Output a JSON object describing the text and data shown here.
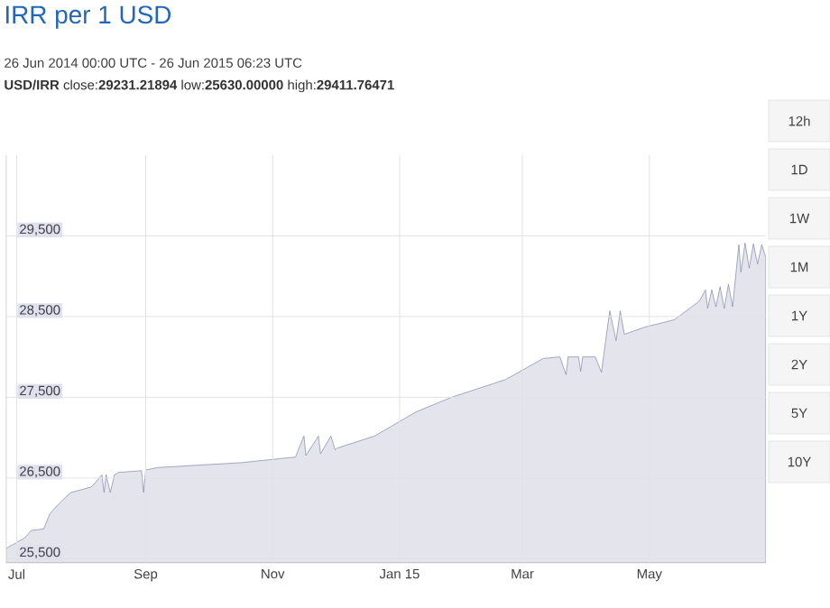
{
  "chart_data": {
    "type": "area",
    "title": "IRR per 1 USD",
    "subtitle": "26 Jun 2014 00:00 UTC - 26 Jun 2015 06:23 UTC",
    "annotations": [
      "**USD/IRR** close:**29231.21894** low:**25630.00000** high:**29411.76471**",
      "12h",
      "1D",
      "1W",
      "1M",
      "1Y",
      "2Y",
      "5Y",
      "10Y"
    ],
    "x": [
      "2014-06-26",
      "2014-07-05",
      "2014-07-08",
      "2014-07-14",
      "2014-07-17",
      "2014-07-22",
      "2014-07-27",
      "2014-08-06",
      "2014-08-11",
      "2014-08-12",
      "2014-08-13",
      "2014-08-15",
      "2014-08-17",
      "2014-08-19",
      "2014-08-30",
      "2014-08-31",
      "2014-09-01",
      "2014-09-07",
      "2014-10-17",
      "2014-11-12",
      "2014-11-16",
      "2014-11-17",
      "2014-11-23",
      "2014-11-24",
      "2014-11-29",
      "2014-12-01",
      "2014-12-02",
      "2014-12-20",
      "2015-01-09",
      "2015-01-26",
      "2015-02-21",
      "2015-03-11",
      "2015-03-19",
      "2015-03-22",
      "2015-03-23",
      "2015-03-28",
      "2015-03-29",
      "2015-03-30",
      "2015-04-05",
      "2015-04-08",
      "2015-04-10",
      "2015-04-12",
      "2015-04-15",
      "2015-04-17",
      "2015-04-19",
      "2015-04-29",
      "2015-05-13",
      "2015-05-25",
      "2015-05-28",
      "2015-05-29",
      "2015-05-31",
      "2015-06-02",
      "2015-06-04",
      "2015-06-06",
      "2015-06-08",
      "2015-06-10",
      "2015-06-13",
      "2015-06-14",
      "2015-06-16",
      "2015-06-18",
      "2015-06-20",
      "2015-06-22",
      "2015-06-24",
      "2015-06-26"
    ],
    "series": [
      {
        "color": "#7f86a8",
        "values": [
          25630,
          25760,
          25850,
          25870,
          26060,
          26200,
          26320,
          26390,
          26540,
          26320,
          26540,
          26320,
          26540,
          26570,
          26590,
          26320,
          26600,
          26630,
          26690,
          26760,
          27020,
          26780,
          27020,
          26800,
          27020,
          26850,
          26870,
          27020,
          27320,
          27500,
          27720,
          27980,
          28000,
          27780,
          28000,
          28000,
          27820,
          28000,
          28000,
          27810,
          28200,
          28570,
          28200,
          28570,
          28280,
          28370,
          28460,
          28690,
          28830,
          28600,
          28830,
          28620,
          28870,
          28600,
          28900,
          28620,
          29390,
          29050,
          29410,
          29100,
          29400,
          29150,
          29390,
          29230
        ]
      }
    ],
    "xlim": [
      "2014-06-26",
      "2015-06-26"
    ],
    "xticks": [
      {
        "value": "2014-07-01",
        "label": "Jul"
      },
      {
        "value": "2014-09-01",
        "label": "Sep"
      },
      {
        "value": "2014-11-01",
        "label": "Nov"
      },
      {
        "value": "2015-01-01",
        "label": "Jan 15"
      },
      {
        "value": "2015-03-01",
        "label": "Mar"
      },
      {
        "value": "2015-05-01",
        "label": "May"
      }
    ],
    "ylim": [
      25450,
      30500
    ],
    "yticks": [
      {
        "value": 25500,
        "label": "25,500"
      },
      {
        "value": 26500,
        "label": "26,500"
      },
      {
        "value": 27500,
        "label": "27,500"
      },
      {
        "value": 28500,
        "label": "28,500"
      },
      {
        "value": 29500,
        "label": "29,500"
      }
    ],
    "grid": true
  }
}
